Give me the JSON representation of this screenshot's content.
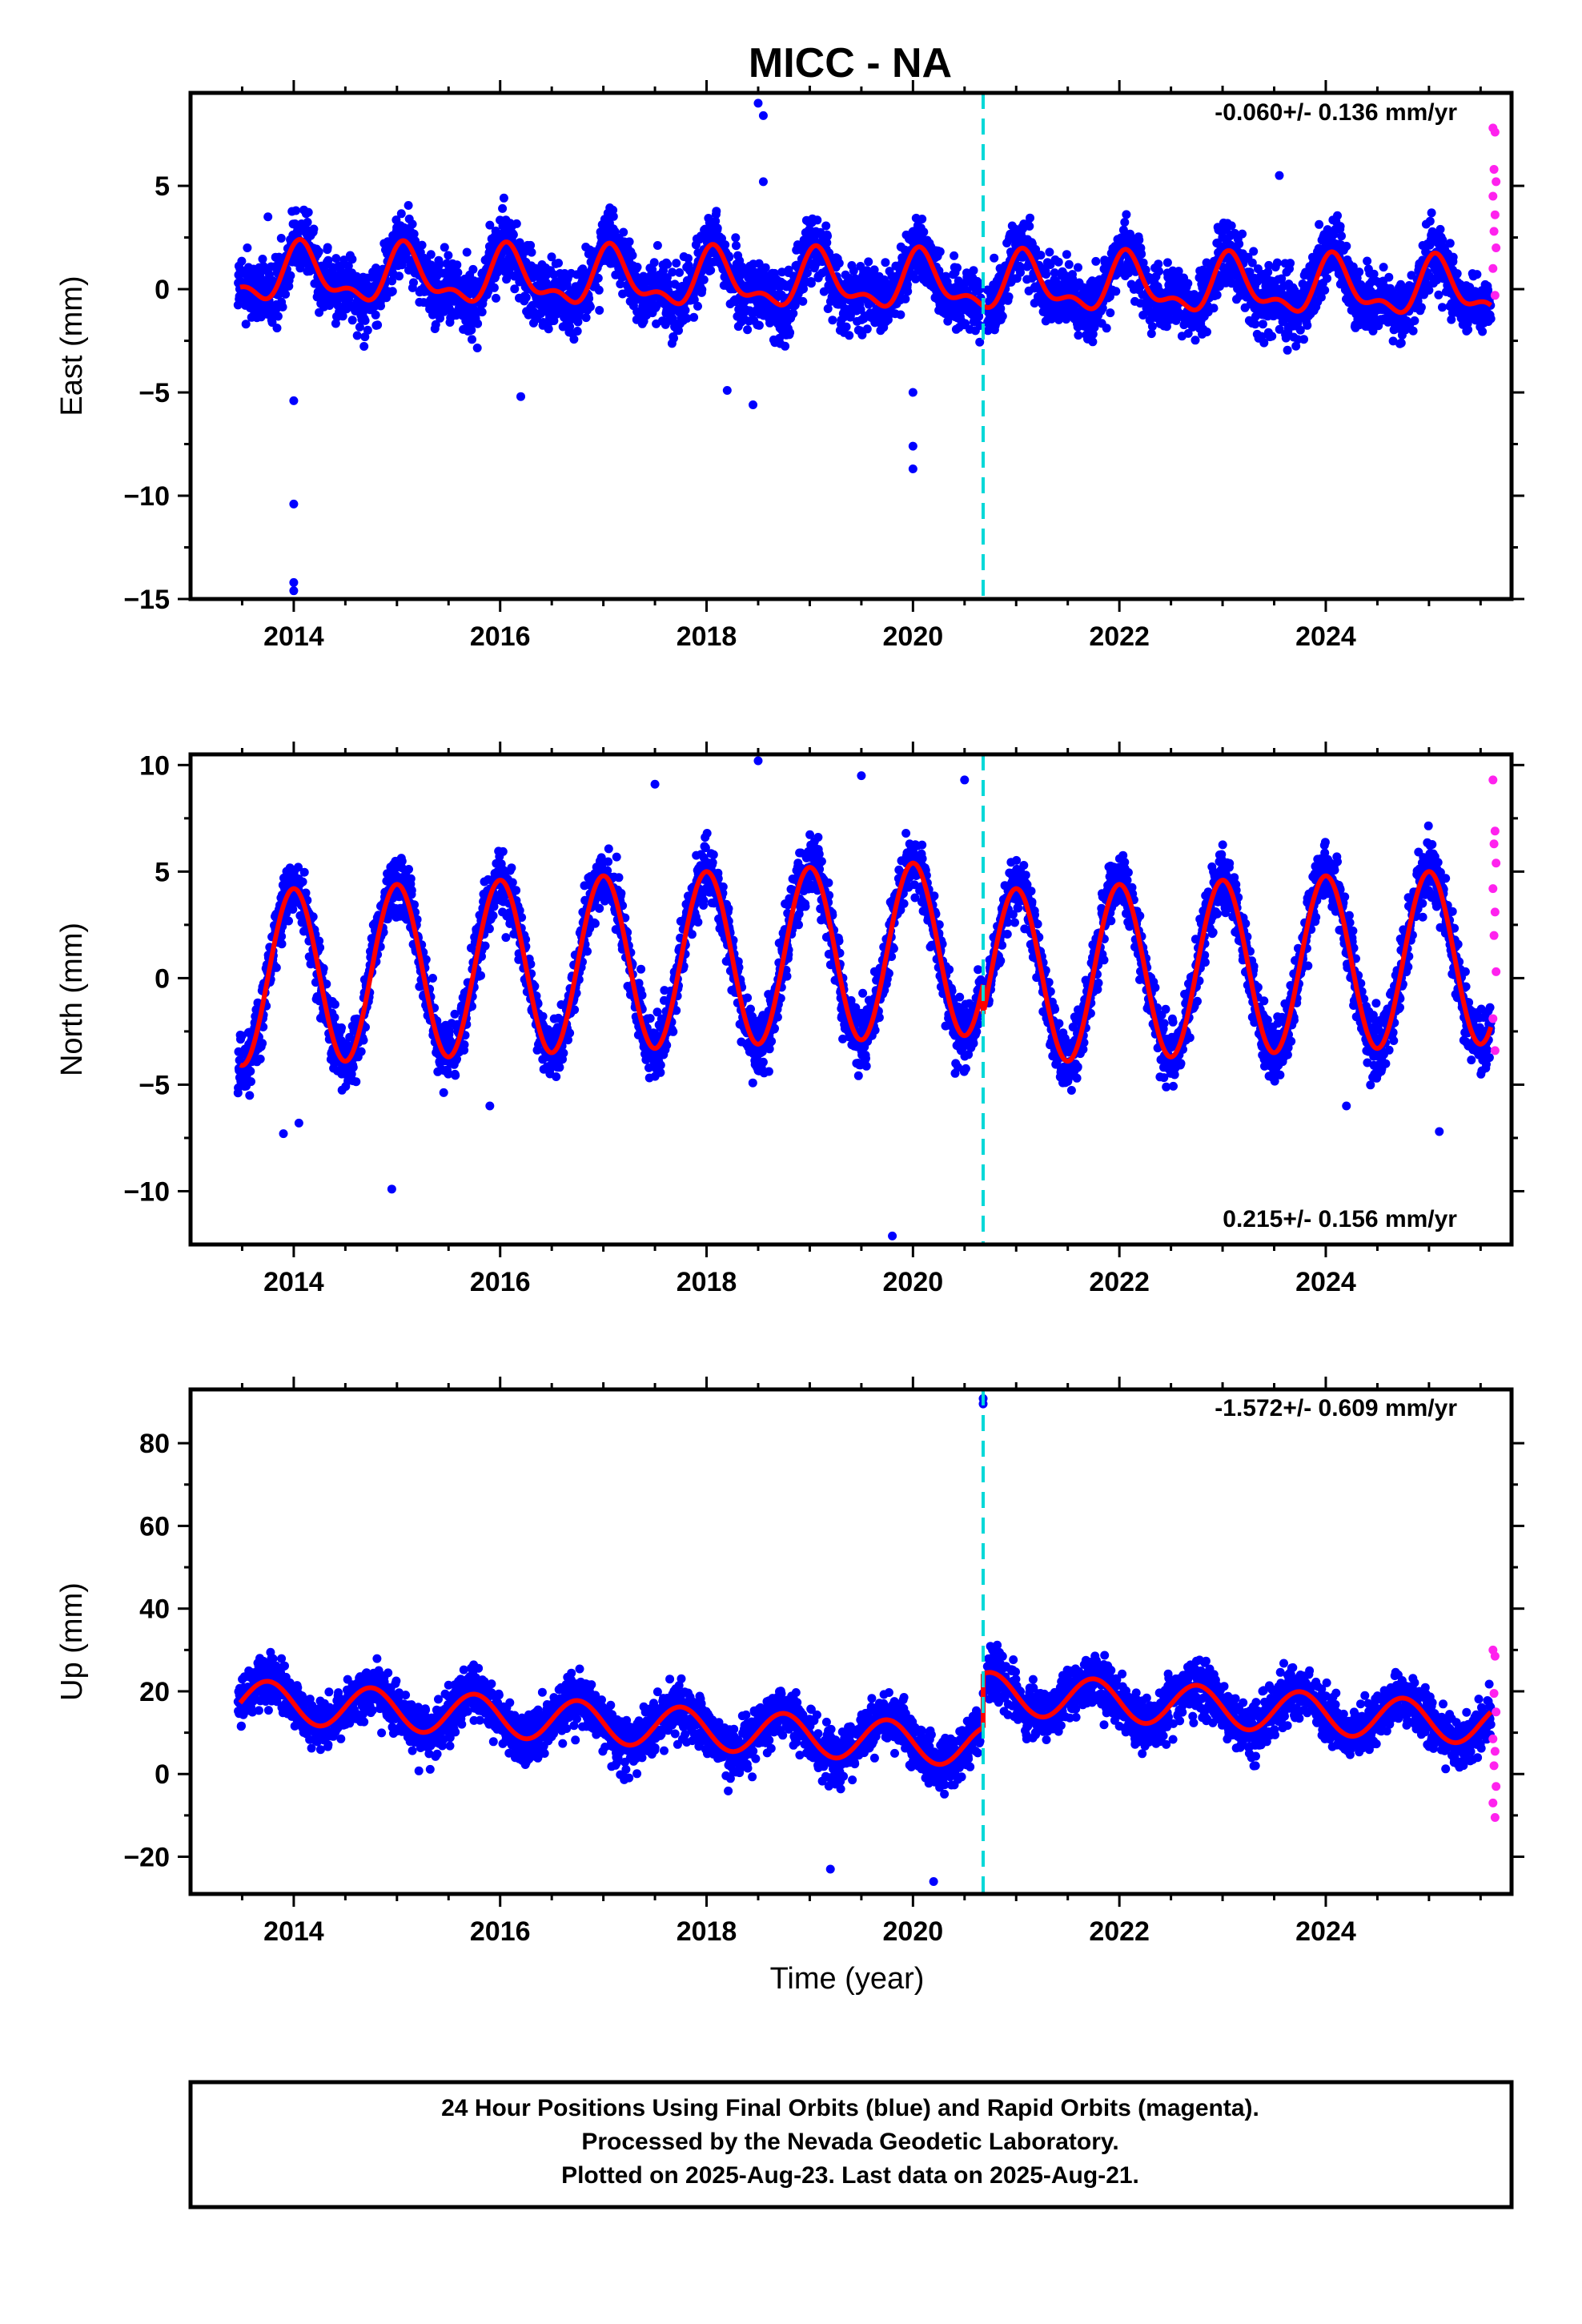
{
  "chart_data": {
    "type": "scatter",
    "title": "MICC - NA",
    "colors": {
      "final_orbits": "#0000ff",
      "rapid_orbits": "#ff22ee",
      "model_fit": "#ff0000",
      "equipment_change": "#00d8d8"
    },
    "x_range": [
      2013.0,
      2025.8
    ],
    "xticks": [
      2014,
      2016,
      2018,
      2020,
      2022,
      2024
    ],
    "xlabel": "Time (year)",
    "equipment_change_year": 2020.68,
    "grid": false,
    "panels": [
      {
        "component": "east",
        "ylabel": "East (mm)",
        "rate_text": "-0.060+/- 0.136 mm/yr",
        "ylim": [
          -15,
          9.5
        ],
        "yticks": [
          5,
          0,
          -5,
          -10,
          -15
        ],
        "ytick_labels": [
          "5",
          "0",
          "−5",
          "−10",
          "−15"
        ],
        "fit": {
          "mean": 0.3,
          "trend": -0.06,
          "ann_amp": 1.2,
          "ann_phase_deg": 30,
          "semi_amp": 0.6,
          "semi_phase_deg": 35,
          "offset_after_break": 0
        },
        "scatter_sigma": 1.1,
        "final_points": [
          [
            2013.55,
            2.0
          ],
          [
            2013.75,
            3.5
          ],
          [
            2014.0,
            -10.4
          ],
          [
            2014.0,
            -14.2
          ],
          [
            2014.0,
            -14.6
          ],
          [
            2014.0,
            -5.4
          ],
          [
            2015.9,
            3.1
          ],
          [
            2016.2,
            -5.2
          ],
          [
            2018.2,
            -4.9
          ],
          [
            2018.45,
            -5.6
          ],
          [
            2018.5,
            9.0
          ],
          [
            2018.55,
            8.4
          ],
          [
            2018.55,
            5.2
          ],
          [
            2020.0,
            -5.0
          ],
          [
            2020.0,
            -7.6
          ],
          [
            2020.0,
            -8.7
          ],
          [
            2023.55,
            5.5
          ]
        ],
        "rapid_points": [
          [
            2025.62,
            7.8
          ],
          [
            2025.64,
            7.6
          ],
          [
            2025.63,
            5.8
          ],
          [
            2025.65,
            5.2
          ],
          [
            2025.62,
            4.5
          ],
          [
            2025.64,
            3.6
          ],
          [
            2025.63,
            2.8
          ],
          [
            2025.65,
            2.0
          ],
          [
            2025.62,
            1.0
          ],
          [
            2025.64,
            -0.3
          ]
        ]
      },
      {
        "component": "north",
        "ylabel": "North (mm)",
        "rate_text": "0.215+/- 0.156 mm/yr",
        "ylim": [
          -12.5,
          10.5
        ],
        "yticks": [
          10,
          5,
          0,
          -5,
          -10
        ],
        "ytick_labels": [
          "10",
          "5",
          "0",
          "−5",
          "−10"
        ],
        "fit": {
          "mean": 1.2,
          "trend": 0.2,
          "ann_amp": 4.1,
          "ann_phase_deg": 0,
          "semi_amp": 0.0,
          "semi_phase_deg": 0,
          "offset_after_break": -1.4
        },
        "scatter_sigma": 1.0,
        "final_points": [
          [
            2013.9,
            -7.3
          ],
          [
            2014.05,
            -6.8
          ],
          [
            2014.95,
            -9.9
          ],
          [
            2015.9,
            -6.0
          ],
          [
            2017.5,
            9.1
          ],
          [
            2018.5,
            10.2
          ],
          [
            2019.5,
            9.5
          ],
          [
            2019.8,
            -12.1
          ],
          [
            2020.5,
            9.3
          ],
          [
            2024.2,
            -6.0
          ],
          [
            2025.1,
            -7.2
          ]
        ],
        "rapid_points": [
          [
            2025.62,
            9.3
          ],
          [
            2025.64,
            6.9
          ],
          [
            2025.63,
            6.3
          ],
          [
            2025.65,
            5.4
          ],
          [
            2025.62,
            4.2
          ],
          [
            2025.64,
            3.1
          ],
          [
            2025.63,
            2.0
          ],
          [
            2025.65,
            0.3
          ],
          [
            2025.62,
            -1.9
          ],
          [
            2025.64,
            -3.4
          ]
        ]
      },
      {
        "component": "up",
        "ylabel": "Up (mm)",
        "rate_text": "-1.572+/- 0.609 mm/yr",
        "ylim": [
          -29,
          93
        ],
        "yticks": [
          80,
          60,
          40,
          20,
          0,
          -20
        ],
        "ytick_labels": [
          "80",
          "60",
          "40",
          "20",
          "0",
          "−20"
        ],
        "fit": {
          "mean": 8.5,
          "trend": -1.55,
          "ann_amp": 5.0,
          "ann_phase_deg": 270,
          "semi_amp": 0.0,
          "semi_phase_deg": 0,
          "offset_after_break": 13.0
        },
        "scatter_sigma": 4.3,
        "final_points": [
          [
            2020.68,
            90.8
          ],
          [
            2020.68,
            89.5
          ],
          [
            2020.68,
            19.5
          ],
          [
            2013.9,
            26.0
          ],
          [
            2015.5,
            21.5
          ],
          [
            2019.2,
            -23.0
          ],
          [
            2020.2,
            -26.0
          ]
        ],
        "rapid_points": [
          [
            2025.62,
            30.0
          ],
          [
            2025.64,
            28.5
          ],
          [
            2025.63,
            19.5
          ],
          [
            2025.65,
            15.0
          ],
          [
            2025.62,
            8.5
          ],
          [
            2025.64,
            5.5
          ],
          [
            2025.63,
            2.0
          ],
          [
            2025.65,
            -3.0
          ],
          [
            2025.62,
            -7.0
          ],
          [
            2025.64,
            -10.5
          ]
        ]
      }
    ]
  },
  "footer": {
    "line1": "24 Hour Positions Using Final Orbits (blue) and Rapid Orbits (magenta).",
    "line2": "Processed by the Nevada Geodetic Laboratory.",
    "line3": "Plotted on 2025-Aug-23. Last data on 2025-Aug-21."
  }
}
